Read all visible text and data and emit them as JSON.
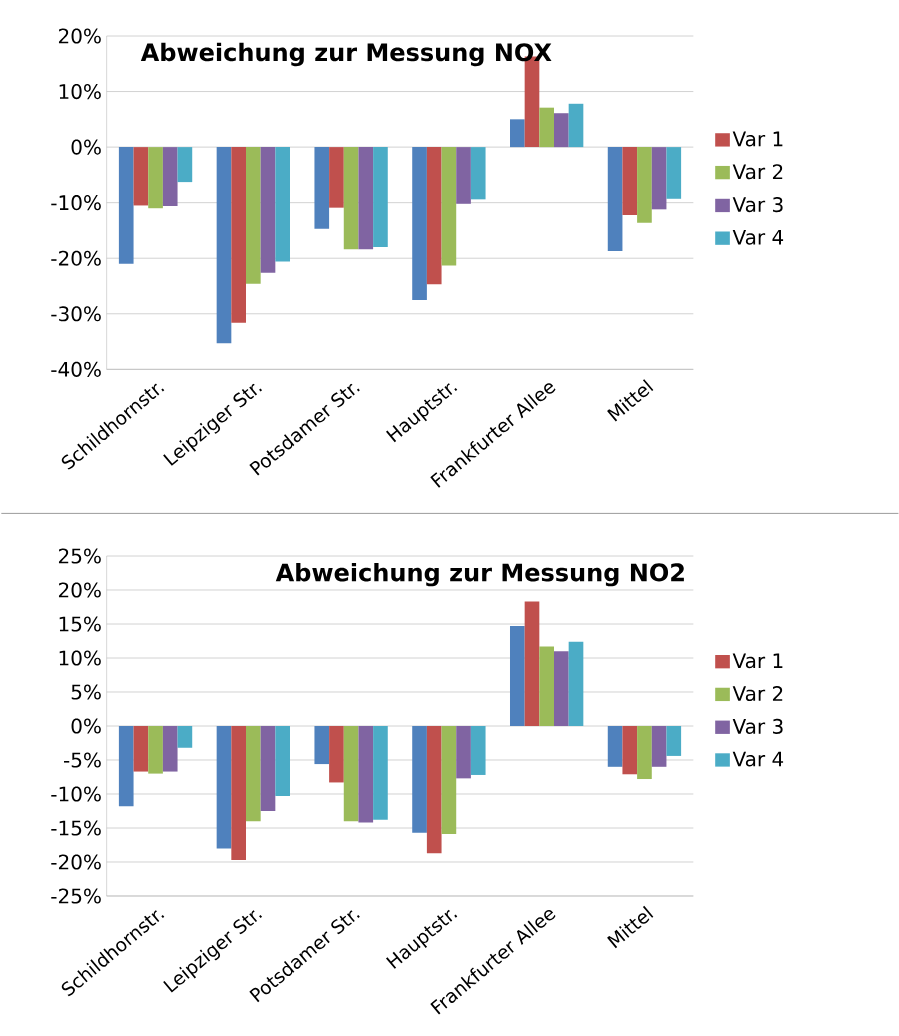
{
  "chart_data": [
    {
      "type": "bar",
      "title": "Abweichung zur Messung NOX",
      "categories": [
        "Schildhornstr.",
        "Leipziger Str.",
        "Potsdamer Str.",
        "Hauptstr.",
        "Frankfurter Allee",
        "Mittel"
      ],
      "series": [
        {
          "color": "#4f81bd",
          "values": [
            -21,
            -35.3,
            -14.7,
            -27.5,
            5,
            -18.7
          ]
        },
        {
          "name": "Var 1",
          "color": "#c0504d",
          "values": [
            -10.5,
            -31.6,
            -10.9,
            -24.7,
            16.3,
            -12.2
          ]
        },
        {
          "name": "Var 2",
          "color": "#9bbb59",
          "values": [
            -11,
            -24.6,
            -18.4,
            -21.3,
            7.1,
            -13.6
          ]
        },
        {
          "name": "Var 3",
          "color": "#8064a2",
          "values": [
            -10.6,
            -22.6,
            -18.4,
            -10.2,
            6.1,
            -11.2
          ]
        },
        {
          "name": "Var 4",
          "color": "#4bacc6",
          "values": [
            -6.3,
            -20.6,
            -18,
            -9.4,
            7.8,
            -9.3
          ]
        }
      ],
      "ylim": [
        -40,
        20
      ],
      "yticks": [
        {
          "value": -40,
          "label": "-40%"
        },
        {
          "value": -30,
          "label": "-30%"
        },
        {
          "value": -20,
          "label": "-20%"
        },
        {
          "value": -10,
          "label": "-10%"
        },
        {
          "value": 0,
          "label": "0%"
        },
        {
          "value": 10,
          "label": "10%"
        },
        {
          "value": 20,
          "label": "20%"
        }
      ],
      "grid": "y",
      "legend": "right"
    },
    {
      "type": "bar",
      "title": "Abweichung zur Messung NO2",
      "categories": [
        "Schildhornstr.",
        "Leipziger Str.",
        "Potsdamer Str.",
        "Hauptstr.",
        "Frankfurter Allee",
        "Mittel"
      ],
      "series": [
        {
          "color": "#4f81bd",
          "values": [
            -11.8,
            -18,
            -5.6,
            -15.7,
            14.7,
            -6
          ]
        },
        {
          "name": "Var 1",
          "color": "#c0504d",
          "values": [
            -6.7,
            -19.7,
            -8.3,
            -18.7,
            18.3,
            -7.1
          ]
        },
        {
          "name": "Var 2",
          "color": "#9bbb59",
          "values": [
            -7,
            -14,
            -14,
            -15.9,
            11.7,
            -7.8
          ]
        },
        {
          "name": "Var 3",
          "color": "#8064a2",
          "values": [
            -6.7,
            -12.5,
            -14.2,
            -7.7,
            11,
            -6
          ]
        },
        {
          "name": "Var 4",
          "color": "#4bacc6",
          "values": [
            -3.2,
            -10.3,
            -13.8,
            -7.2,
            12.4,
            -4.4
          ]
        }
      ],
      "ylim": [
        -25,
        25
      ],
      "yticks": [
        {
          "value": -25,
          "label": "-25%"
        },
        {
          "value": -20,
          "label": "-20%"
        },
        {
          "value": -15,
          "label": "-15%"
        },
        {
          "value": -10,
          "label": "-10%"
        },
        {
          "value": -5,
          "label": "-5%"
        },
        {
          "value": 0,
          "label": "0%"
        },
        {
          "value": 5,
          "label": "5%"
        },
        {
          "value": 10,
          "label": "10%"
        },
        {
          "value": 15,
          "label": "15%"
        },
        {
          "value": 20,
          "label": "20%"
        },
        {
          "value": 25,
          "label": "25%"
        }
      ],
      "grid": "y",
      "legend": "right"
    }
  ]
}
